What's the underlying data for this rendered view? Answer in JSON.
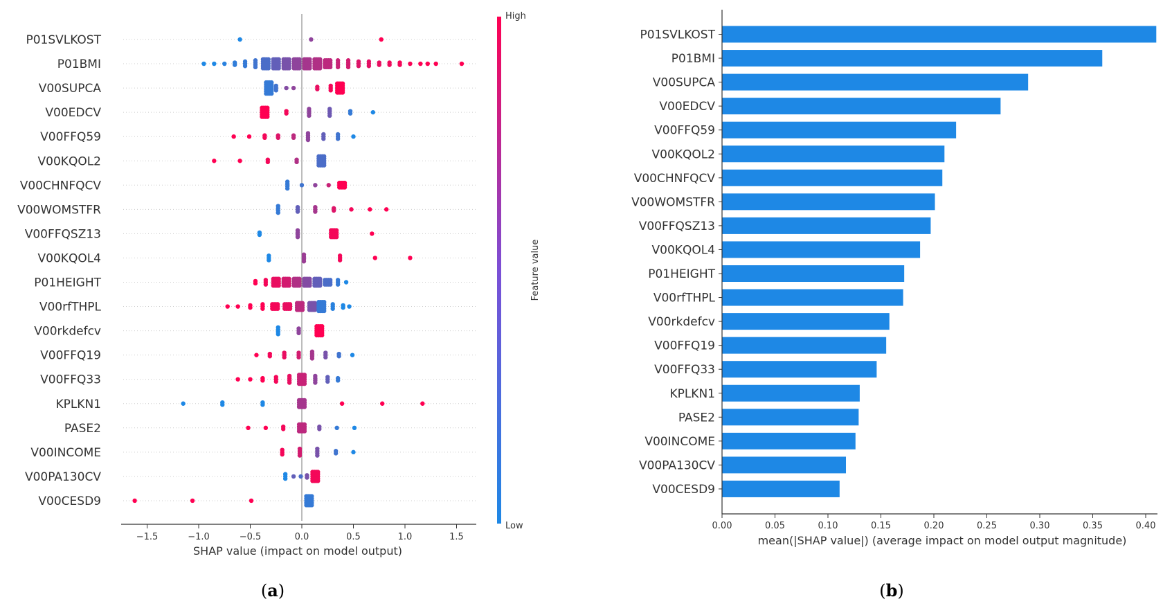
{
  "panels": {
    "a": {
      "label_open": "(",
      "label_letter": "a",
      "label_close": ")"
    },
    "b": {
      "label_open": "(",
      "label_letter": "b",
      "label_close": ")"
    }
  },
  "colors": {
    "low": "#1e88e5",
    "high": "#ff0052",
    "bar": "#1e88e5",
    "axis": "#333333",
    "zero_line": "#999999"
  },
  "chart_data": [
    {
      "type": "scatter",
      "subtype": "shap-beeswarm",
      "features": [
        "P01SVLKOST",
        "P01BMI",
        "V00SUPCA",
        "V00EDCV",
        "V00FFQ59",
        "V00KQOL2",
        "V00CHNFQCV",
        "V00WOMSTFR",
        "V00FFQSZ13",
        "V00KQOL4",
        "P01HEIGHT",
        "V00rfTHPL",
        "V00rkdefcv",
        "V00FFQ19",
        "V00FFQ33",
        "KPLKN1",
        "PASE2",
        "V00INCOME",
        "V00PA130CV",
        "V00CESD9"
      ],
      "xlabel": "SHAP value (impact on model output)",
      "xlim": [
        -1.8,
        1.7
      ],
      "xticks": [
        -1.5,
        -1.0,
        -0.5,
        0.0,
        0.5,
        1.0,
        1.5
      ],
      "xtick_labels": [
        "−1.5",
        "−1.0",
        "−0.5",
        "0.0",
        "0.5",
        "1.0",
        "1.5"
      ],
      "colorbar": {
        "label": "Feature value",
        "high_label": "High",
        "low_label": "Low"
      },
      "clusters": [
        [
          [
            -0.6,
            0,
            1,
            0
          ],
          [
            0.09,
            0.5,
            1,
            0
          ],
          [
            0.77,
            1,
            1,
            0
          ]
        ],
        [
          [
            -0.95,
            0,
            1,
            0
          ],
          [
            -0.85,
            0,
            1,
            0
          ],
          [
            -0.75,
            0.05,
            1,
            0
          ],
          [
            -0.65,
            0.08,
            2,
            0
          ],
          [
            -0.55,
            0.1,
            3,
            0
          ],
          [
            -0.45,
            0.15,
            4,
            0
          ],
          [
            -0.35,
            0.2,
            5,
            1
          ],
          [
            -0.25,
            0.3,
            5,
            1
          ],
          [
            -0.15,
            0.4,
            5,
            1
          ],
          [
            -0.05,
            0.5,
            5,
            1
          ],
          [
            0.05,
            0.6,
            5,
            1
          ],
          [
            0.15,
            0.65,
            5,
            1
          ],
          [
            0.25,
            0.7,
            4,
            1
          ],
          [
            0.35,
            0.75,
            4,
            0
          ],
          [
            0.45,
            0.8,
            4,
            0
          ],
          [
            0.55,
            0.85,
            3,
            0
          ],
          [
            0.65,
            0.88,
            3,
            0
          ],
          [
            0.75,
            0.9,
            2,
            0
          ],
          [
            0.85,
            0.93,
            2,
            0
          ],
          [
            0.95,
            0.95,
            2,
            0
          ],
          [
            1.05,
            0.97,
            1,
            0
          ],
          [
            1.15,
            1,
            1,
            0
          ],
          [
            1.22,
            1,
            1,
            0
          ],
          [
            1.3,
            1,
            1,
            0
          ],
          [
            1.55,
            1,
            1,
            0
          ]
        ],
        [
          [
            -0.32,
            0.1,
            6,
            1
          ],
          [
            -0.25,
            0.15,
            3,
            0
          ],
          [
            -0.15,
            0.45,
            1,
            0
          ],
          [
            -0.08,
            0.5,
            1,
            0
          ],
          [
            0.15,
            0.9,
            2,
            0
          ],
          [
            0.28,
            0.95,
            3,
            0
          ],
          [
            0.37,
            1,
            5,
            1
          ]
        ],
        [
          [
            -0.36,
            1,
            5,
            1
          ],
          [
            -0.15,
            0.95,
            2,
            0
          ],
          [
            0.07,
            0.5,
            4,
            0
          ],
          [
            0.27,
            0.35,
            4,
            0
          ],
          [
            0.47,
            0.1,
            2,
            0
          ],
          [
            0.69,
            0,
            1,
            0
          ]
        ],
        [
          [
            -0.66,
            1,
            1,
            0
          ],
          [
            -0.51,
            1,
            1,
            0
          ],
          [
            -0.36,
            0.95,
            2,
            0
          ],
          [
            -0.23,
            0.85,
            2,
            0
          ],
          [
            -0.08,
            0.7,
            2,
            0
          ],
          [
            0.06,
            0.5,
            4,
            0
          ],
          [
            0.21,
            0.3,
            3,
            0
          ],
          [
            0.35,
            0.15,
            3,
            0
          ],
          [
            0.5,
            0,
            1,
            0
          ]
        ],
        [
          [
            -0.85,
            1,
            1,
            0
          ],
          [
            -0.6,
            1,
            1,
            0
          ],
          [
            -0.33,
            0.95,
            2,
            0
          ],
          [
            -0.05,
            0.65,
            2,
            0
          ],
          [
            0.19,
            0.2,
            5,
            1
          ]
        ],
        [
          [
            -0.14,
            0.1,
            4,
            0
          ],
          [
            0.0,
            0.15,
            1,
            0
          ],
          [
            0.13,
            0.5,
            1,
            0
          ],
          [
            0.26,
            0.75,
            1,
            0
          ],
          [
            0.39,
            1,
            3,
            1
          ]
        ],
        [
          [
            -0.23,
            0.1,
            4,
            0
          ],
          [
            -0.04,
            0.3,
            3,
            0
          ],
          [
            0.13,
            0.6,
            3,
            0
          ],
          [
            0.31,
            0.85,
            2,
            0
          ],
          [
            0.48,
            0.95,
            1,
            0
          ],
          [
            0.66,
            1,
            1,
            0
          ],
          [
            0.82,
            1,
            1,
            0
          ]
        ],
        [
          [
            -0.41,
            0,
            2,
            0
          ],
          [
            -0.04,
            0.5,
            4,
            0
          ],
          [
            0.31,
            0.95,
            4,
            1
          ],
          [
            0.68,
            1,
            1,
            0
          ]
        ],
        [
          [
            -0.32,
            0,
            3,
            0
          ],
          [
            0.02,
            0.55,
            4,
            0
          ],
          [
            0.37,
            0.95,
            3,
            0
          ],
          [
            0.71,
            1,
            1,
            0
          ],
          [
            1.05,
            1,
            1,
            0
          ]
        ],
        [
          [
            -0.45,
            1,
            2,
            0
          ],
          [
            -0.35,
            0.95,
            3,
            0
          ],
          [
            -0.25,
            0.9,
            4,
            1
          ],
          [
            -0.15,
            0.8,
            4,
            1
          ],
          [
            -0.05,
            0.65,
            4,
            1
          ],
          [
            0.05,
            0.45,
            4,
            1
          ],
          [
            0.15,
            0.3,
            4,
            1
          ],
          [
            0.25,
            0.2,
            3,
            1
          ],
          [
            0.35,
            0.1,
            3,
            0
          ],
          [
            0.43,
            0,
            1,
            0
          ]
        ],
        [
          [
            -0.72,
            1,
            1,
            0
          ],
          [
            -0.62,
            1,
            1,
            0
          ],
          [
            -0.5,
            1,
            2,
            0
          ],
          [
            -0.38,
            1,
            3,
            0
          ],
          [
            -0.26,
            0.95,
            3,
            1
          ],
          [
            -0.14,
            0.9,
            3,
            1
          ],
          [
            -0.02,
            0.7,
            4,
            1
          ],
          [
            0.1,
            0.4,
            4,
            1
          ],
          [
            0.19,
            0.1,
            5,
            1
          ],
          [
            0.3,
            0.05,
            3,
            0
          ],
          [
            0.4,
            0,
            2,
            0
          ],
          [
            0.46,
            0,
            1,
            0
          ]
        ],
        [
          [
            -0.23,
            0,
            4,
            0
          ],
          [
            -0.03,
            0.5,
            3,
            0
          ],
          [
            0.17,
            1,
            5,
            1
          ]
        ],
        [
          [
            -0.44,
            1,
            1,
            0
          ],
          [
            -0.31,
            0.95,
            2,
            0
          ],
          [
            -0.17,
            0.9,
            3,
            0
          ],
          [
            -0.03,
            0.8,
            3,
            0
          ],
          [
            0.1,
            0.6,
            4,
            0
          ],
          [
            0.23,
            0.4,
            3,
            0
          ],
          [
            0.36,
            0.15,
            2,
            0
          ],
          [
            0.49,
            0,
            1,
            0
          ]
        ],
        [
          [
            -0.62,
            1,
            1,
            0
          ],
          [
            -0.5,
            1,
            1,
            0
          ],
          [
            -0.38,
            1,
            2,
            0
          ],
          [
            -0.25,
            0.95,
            3,
            0
          ],
          [
            -0.12,
            0.9,
            4,
            0
          ],
          [
            0.0,
            0.75,
            5,
            1
          ],
          [
            0.13,
            0.5,
            4,
            0
          ],
          [
            0.25,
            0.3,
            3,
            0
          ],
          [
            0.35,
            0.1,
            2,
            0
          ]
        ],
        [
          [
            -1.15,
            0,
            1,
            0
          ],
          [
            -0.77,
            0,
            2,
            0
          ],
          [
            -0.38,
            0,
            2,
            0
          ],
          [
            0.0,
            0.6,
            4,
            1
          ],
          [
            0.39,
            1,
            1,
            0
          ],
          [
            0.78,
            1,
            1,
            0
          ],
          [
            1.17,
            1,
            1,
            0
          ]
        ],
        [
          [
            -0.52,
            1,
            1,
            0
          ],
          [
            -0.35,
            1,
            1,
            0
          ],
          [
            -0.18,
            0.95,
            2,
            0
          ],
          [
            0.0,
            0.7,
            4,
            1
          ],
          [
            0.17,
            0.4,
            2,
            0
          ],
          [
            0.34,
            0.1,
            1,
            0
          ],
          [
            0.51,
            0,
            1,
            0
          ]
        ],
        [
          [
            -0.19,
            0.95,
            3,
            0
          ],
          [
            -0.02,
            0.8,
            4,
            0
          ],
          [
            0.15,
            0.4,
            4,
            0
          ],
          [
            0.33,
            0.15,
            2,
            0
          ],
          [
            0.5,
            0,
            1,
            0
          ]
        ],
        [
          [
            -0.16,
            0,
            3,
            0
          ],
          [
            -0.08,
            0.3,
            1,
            0
          ],
          [
            -0.01,
            0.2,
            1,
            0
          ],
          [
            0.05,
            0.4,
            2,
            0
          ],
          [
            0.13,
            0.95,
            5,
            1
          ]
        ],
        [
          [
            -1.62,
            1,
            1,
            0
          ],
          [
            -1.06,
            1,
            1,
            0
          ],
          [
            -0.49,
            1,
            1,
            0
          ],
          [
            0.07,
            0.1,
            5,
            1
          ]
        ]
      ]
    },
    {
      "type": "bar",
      "orientation": "horizontal",
      "categories": [
        "P01SVLKOST",
        "P01BMI",
        "V00SUPCA",
        "V00EDCV",
        "V00FFQ59",
        "V00KQOL2",
        "V00CHNFQCV",
        "V00WOMSTFR",
        "V00FFQSZ13",
        "V00KQOL4",
        "P01HEIGHT",
        "V00rfTHPL",
        "V00rkdefcv",
        "V00FFQ19",
        "V00FFQ33",
        "KPLKN1",
        "PASE2",
        "V00INCOME",
        "V00PA130CV",
        "V00CESD9"
      ],
      "values": [
        0.41,
        0.359,
        0.289,
        0.263,
        0.221,
        0.21,
        0.208,
        0.201,
        0.197,
        0.187,
        0.172,
        0.171,
        0.158,
        0.155,
        0.146,
        0.13,
        0.129,
        0.126,
        0.117,
        0.111
      ],
      "xlabel": "mean(|SHAP value|) (average impact on model output magnitude)",
      "xlim": [
        0,
        0.43
      ],
      "xticks": [
        0.0,
        0.05,
        0.1,
        0.15,
        0.2,
        0.25,
        0.3,
        0.35,
        0.4
      ],
      "xtick_labels": [
        "0.00",
        "0.05",
        "0.10",
        "0.15",
        "0.20",
        "0.25",
        "0.30",
        "0.35",
        "0.40"
      ]
    }
  ]
}
